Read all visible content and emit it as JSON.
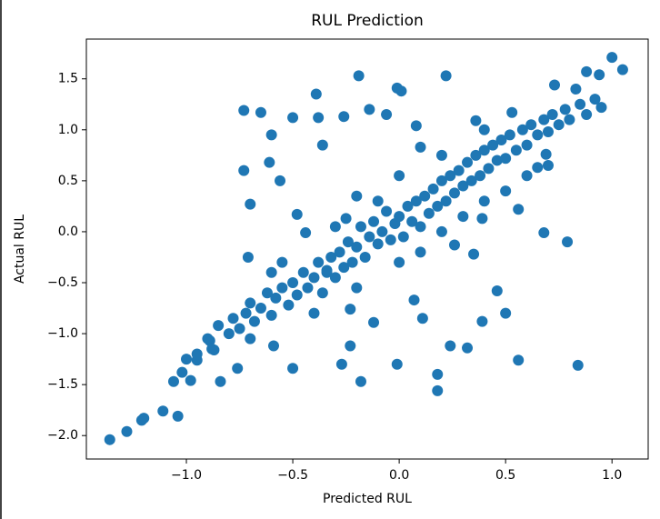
{
  "chart_data": {
    "type": "scatter",
    "title": "RUL Prediction",
    "x_label": "Predicted RUL",
    "y_label": "Actual RUL",
    "color": "#1f77b4",
    "xlim": [
      -1.47,
      1.17
    ],
    "ylim": [
      -2.23,
      1.89
    ],
    "xticks": [
      {
        "value": -1.0,
        "label": "−1.0"
      },
      {
        "value": -0.5,
        "label": "−0.5"
      },
      {
        "value": 0.0,
        "label": "0.0"
      },
      0.5,
      {
        "value": 1.0,
        "label": "1.0"
      }
    ],
    "yticks": [
      {
        "value": -2.0,
        "label": "−2.0"
      },
      {
        "value": -1.5,
        "label": "−1.5"
      },
      {
        "value": -1.0,
        "label": "−1.0"
      },
      {
        "value": -0.5,
        "label": "−0.5"
      },
      {
        "value": 0.0,
        "label": "0.0"
      },
      0.5,
      {
        "value": 1.0,
        "label": "1.0"
      },
      1.5
    ],
    "grid": false,
    "x": [
      -1.36,
      -1.28,
      -1.21,
      -1.2,
      -1.04,
      -1.11,
      -1.06,
      -1.02,
      -0.98,
      -0.89,
      -0.73,
      -0.65,
      -0.73,
      -0.6,
      -0.61,
      -0.56,
      -0.7,
      -0.71,
      -0.5,
      -0.39,
      -0.19,
      -0.14,
      0.01,
      -0.01,
      0.22,
      0.88,
      0.94,
      1.0,
      1.05,
      0.79,
      0.84,
      0.56,
      0.18,
      0.18,
      -0.18,
      -0.27,
      -0.01,
      -0.5,
      -0.84,
      0.68,
      0.5,
      0.46,
      0.39,
      0.32,
      0.24,
      -0.36,
      -0.38,
      -0.26,
      -0.06,
      0.08,
      0.1,
      0.36,
      0.53,
      0.73,
      0.83,
      -0.48,
      -0.44,
      -0.25,
      -0.34,
      -0.23,
      -0.12,
      0.07,
      0.11,
      -0.23,
      -0.59,
      -0.76,
      -0.95,
      -0.87,
      0.65,
      0.69,
      0.56,
      0.39,
      0.26,
      0.35,
      -0.9,
      -0.85,
      -0.8,
      -0.78,
      -0.75,
      -0.72,
      -0.7,
      -0.68,
      -0.65,
      -0.62,
      -0.6,
      -0.58,
      -0.55,
      -0.52,
      -0.5,
      -0.48,
      -0.45,
      -0.43,
      -0.4,
      -0.38,
      -0.36,
      -0.34,
      -0.32,
      -0.3,
      -0.28,
      -0.26,
      -0.24,
      -0.22,
      -0.2,
      -0.18,
      -0.16,
      -0.14,
      -0.12,
      -0.1,
      -0.08,
      -0.06,
      -0.04,
      -0.02,
      0.0,
      0.02,
      0.04,
      0.06,
      0.08,
      0.1,
      0.12,
      0.14,
      0.16,
      0.18,
      0.2,
      0.22,
      0.24,
      0.26,
      0.28,
      0.3,
      0.32,
      0.34,
      0.36,
      0.38,
      0.4,
      0.42,
      0.44,
      0.46,
      0.48,
      0.5,
      0.52,
      0.55,
      0.58,
      0.6,
      0.62,
      0.65,
      0.68,
      0.7,
      0.72,
      0.75,
      0.78,
      0.8,
      0.85,
      0.88,
      0.92,
      0.95,
      -0.95,
      -1.0,
      -0.88,
      -0.7,
      -0.55,
      -0.3,
      -0.1,
      0.1,
      0.3,
      0.5,
      0.7,
      -0.4,
      -0.2,
      0.0,
      0.2,
      0.4,
      0.6,
      -0.6,
      -0.2,
      0.0,
      0.2,
      0.4
    ],
    "values": [
      -2.04,
      -1.96,
      -1.85,
      -1.83,
      -1.81,
      -1.76,
      -1.47,
      -1.38,
      -1.46,
      -1.07,
      0.6,
      1.17,
      1.19,
      0.95,
      0.68,
      0.5,
      0.27,
      -0.25,
      1.12,
      1.35,
      1.53,
      1.2,
      1.38,
      1.41,
      1.53,
      1.57,
      1.54,
      1.71,
      1.59,
      -0.1,
      -1.31,
      -1.26,
      -1.56,
      -1.4,
      -1.47,
      -1.3,
      -1.3,
      -1.34,
      -1.47,
      -0.01,
      -0.8,
      -0.58,
      -0.88,
      -1.14,
      -1.12,
      0.85,
      1.12,
      1.13,
      1.15,
      1.04,
      0.83,
      1.09,
      1.17,
      1.44,
      1.4,
      0.17,
      -0.01,
      0.13,
      -0.4,
      -0.76,
      -0.89,
      -0.67,
      -0.85,
      -1.12,
      -1.12,
      -1.34,
      -1.26,
      -1.16,
      0.63,
      0.76,
      0.22,
      0.13,
      -0.13,
      -0.22,
      -1.05,
      -0.92,
      -1.0,
      -0.85,
      -0.95,
      -0.8,
      -0.7,
      -0.88,
      -0.75,
      -0.6,
      -0.82,
      -0.65,
      -0.55,
      -0.72,
      -0.5,
      -0.62,
      -0.4,
      -0.55,
      -0.45,
      -0.3,
      -0.6,
      -0.38,
      -0.25,
      -0.45,
      -0.2,
      -0.35,
      -0.1,
      -0.3,
      -0.15,
      0.05,
      -0.25,
      -0.05,
      0.1,
      -0.12,
      0.0,
      0.2,
      -0.08,
      0.08,
      0.15,
      -0.05,
      0.25,
      0.1,
      0.3,
      0.05,
      0.35,
      0.18,
      0.42,
      0.25,
      0.5,
      0.3,
      0.55,
      0.38,
      0.6,
      0.45,
      0.68,
      0.5,
      0.75,
      0.55,
      0.8,
      0.62,
      0.85,
      0.7,
      0.9,
      0.72,
      0.95,
      0.8,
      1.0,
      0.85,
      1.05,
      0.95,
      1.1,
      0.98,
      1.15,
      1.05,
      1.2,
      1.1,
      1.25,
      1.15,
      1.3,
      1.22,
      -1.2,
      -1.25,
      -1.15,
      -1.05,
      -0.3,
      0.05,
      0.3,
      -0.2,
      0.15,
      0.4,
      0.65,
      -0.8,
      -0.55,
      -0.3,
      0.0,
      0.3,
      0.55,
      -0.4,
      0.35,
      0.55,
      0.75,
      1.0
    ]
  }
}
